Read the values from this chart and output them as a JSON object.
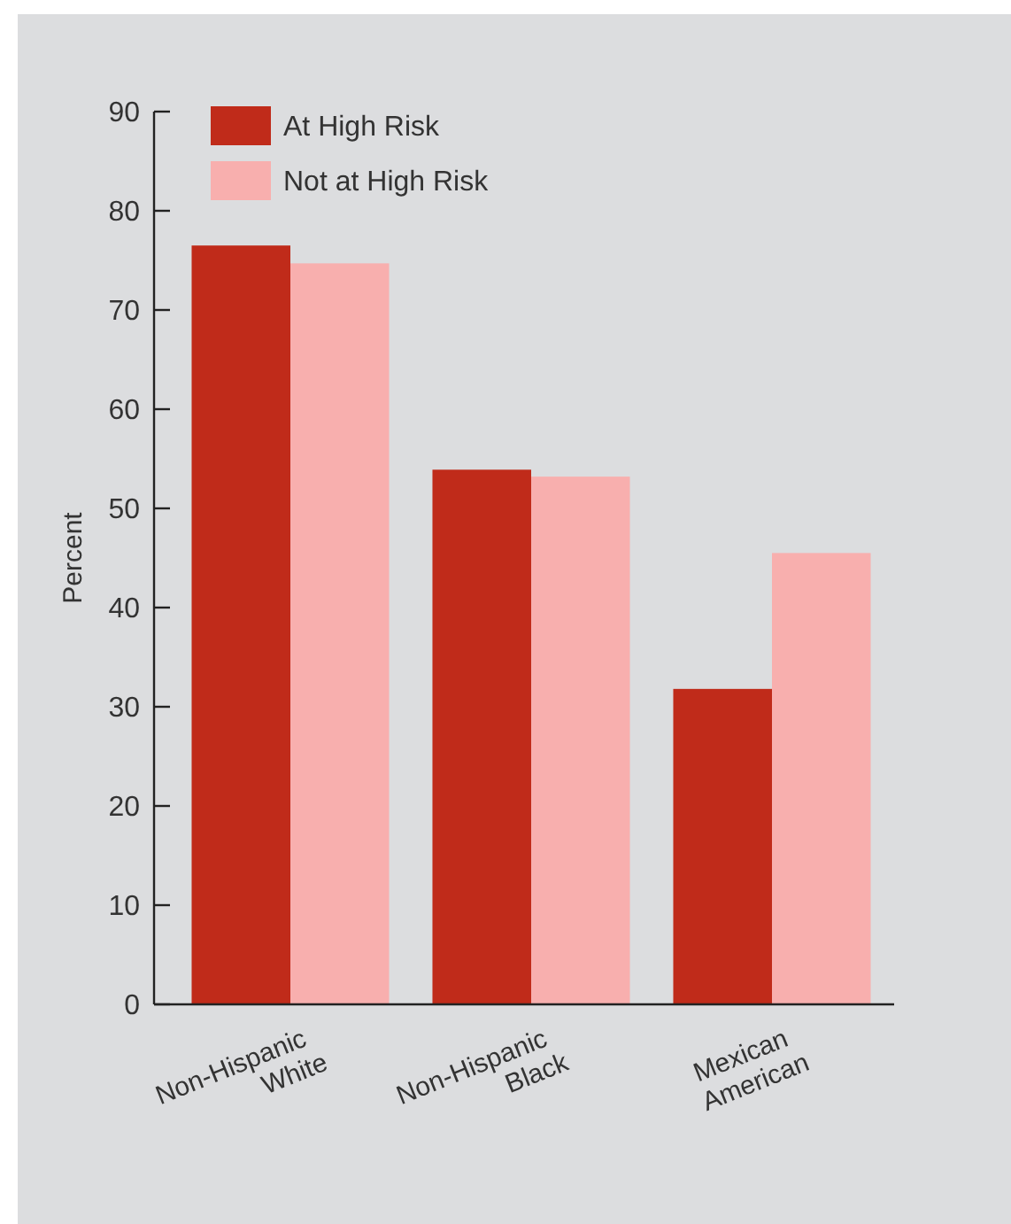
{
  "chart_data": {
    "type": "bar",
    "ylabel": "Percent",
    "categories": [
      "Non-Hispanic White",
      "Non-Hispanic Black",
      "Mexican American"
    ],
    "series": [
      {
        "name": "At High Risk",
        "color": "#c02b1a",
        "values": [
          76.5,
          53.9,
          31.8
        ]
      },
      {
        "name": "Not at High Risk",
        "color": "#f8afae",
        "values": [
          74.7,
          53.2,
          45.5
        ]
      }
    ],
    "ylim": [
      0,
      90
    ],
    "yticks": [
      0,
      10,
      20,
      30,
      40,
      50,
      60,
      70,
      80,
      90
    ],
    "grid": false,
    "legend": "top left"
  }
}
